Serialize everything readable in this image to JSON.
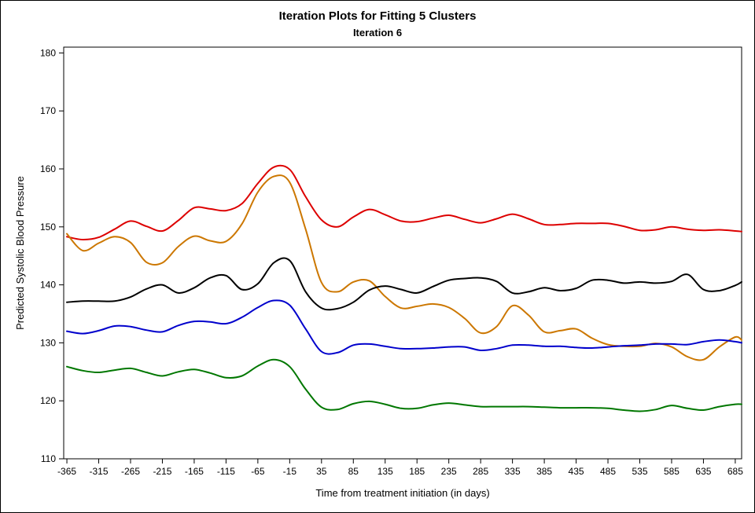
{
  "chart_data": {
    "type": "line",
    "title": "Iteration Plots for Fitting 5 Clusters",
    "subtitle": "Iteration 6",
    "xlabel": "Time from treatment initiation (in days)",
    "ylabel": "Predicted Systolic Blood Pressure",
    "xlim": [
      -370,
      695
    ],
    "ylim": [
      110,
      181
    ],
    "x_ticks": [
      -365,
      -315,
      -265,
      -215,
      -165,
      -115,
      -65,
      -15,
      35,
      85,
      135,
      185,
      235,
      285,
      335,
      385,
      435,
      485,
      535,
      585,
      635,
      685
    ],
    "y_ticks": [
      110,
      120,
      130,
      140,
      150,
      160,
      170,
      180
    ],
    "grid": false,
    "x": [
      -365,
      -340,
      -315,
      -290,
      -265,
      -240,
      -215,
      -190,
      -165,
      -140,
      -115,
      -90,
      -65,
      -40,
      -15,
      10,
      35,
      60,
      85,
      110,
      135,
      160,
      185,
      210,
      235,
      260,
      285,
      310,
      335,
      360,
      385,
      410,
      435,
      460,
      485,
      510,
      535,
      560,
      585,
      610,
      635,
      660,
      685,
      695
    ],
    "series": [
      {
        "color": "#dd0000",
        "values": [
          148.3,
          147.8,
          148.2,
          149.6,
          151.0,
          150.1,
          149.3,
          151.1,
          153.3,
          153.1,
          152.8,
          154.0,
          157.5,
          160.3,
          159.9,
          155.2,
          151.2,
          150.0,
          151.7,
          153.0,
          152.1,
          151.0,
          150.9,
          151.5,
          152.0,
          151.3,
          150.7,
          151.4,
          152.2,
          151.4,
          150.4,
          150.4,
          150.6,
          150.6,
          150.6,
          150.1,
          149.4,
          149.5,
          150.0,
          149.6,
          149.4,
          149.5,
          149.3,
          149.2
        ]
      },
      {
        "color": "#cc7700",
        "values": [
          148.8,
          145.9,
          147.2,
          148.3,
          147.3,
          143.9,
          143.8,
          146.6,
          148.4,
          147.6,
          147.5,
          150.5,
          156.0,
          158.7,
          157.7,
          149.6,
          140.4,
          138.8,
          140.5,
          140.7,
          138.0,
          136.0,
          136.3,
          136.7,
          136.1,
          134.2,
          131.7,
          132.8,
          136.4,
          134.8,
          131.9,
          132.1,
          132.4,
          130.8,
          129.7,
          129.4,
          129.4,
          129.9,
          129.3,
          127.6,
          127.1,
          129.3,
          131.0,
          130.5
        ]
      },
      {
        "color": "#000000",
        "values": [
          137.0,
          137.2,
          137.2,
          137.2,
          137.9,
          139.3,
          140.0,
          138.6,
          139.5,
          141.2,
          141.6,
          139.2,
          140.2,
          143.8,
          144.2,
          138.8,
          136.0,
          135.9,
          137.0,
          139.1,
          139.8,
          139.2,
          138.6,
          139.7,
          140.8,
          141.1,
          141.2,
          140.6,
          138.6,
          138.8,
          139.5,
          139.0,
          139.4,
          140.8,
          140.8,
          140.3,
          140.5,
          140.3,
          140.6,
          141.8,
          139.2,
          139.0,
          139.9,
          140.5
        ]
      },
      {
        "color": "#0000cc",
        "values": [
          132.0,
          131.6,
          132.1,
          132.9,
          132.8,
          132.2,
          131.9,
          133.0,
          133.7,
          133.6,
          133.3,
          134.4,
          136.1,
          137.3,
          136.5,
          132.4,
          128.5,
          128.3,
          129.6,
          129.8,
          129.4,
          129.0,
          129.0,
          129.1,
          129.3,
          129.3,
          128.7,
          129.0,
          129.6,
          129.6,
          129.4,
          129.4,
          129.2,
          129.1,
          129.3,
          129.5,
          129.6,
          129.8,
          129.8,
          129.7,
          130.2,
          130.5,
          130.2,
          130.0
        ]
      },
      {
        "color": "#007700",
        "values": [
          125.9,
          125.2,
          124.9,
          125.3,
          125.6,
          124.9,
          124.3,
          125.0,
          125.4,
          124.8,
          124.0,
          124.3,
          126.0,
          127.1,
          125.9,
          122.0,
          118.9,
          118.5,
          119.5,
          119.9,
          119.4,
          118.7,
          118.7,
          119.3,
          119.6,
          119.3,
          119.0,
          119.0,
          119.0,
          119.0,
          118.9,
          118.8,
          118.8,
          118.8,
          118.7,
          118.4,
          118.2,
          118.5,
          119.2,
          118.7,
          118.4,
          119.0,
          119.4,
          119.4
        ]
      }
    ]
  }
}
